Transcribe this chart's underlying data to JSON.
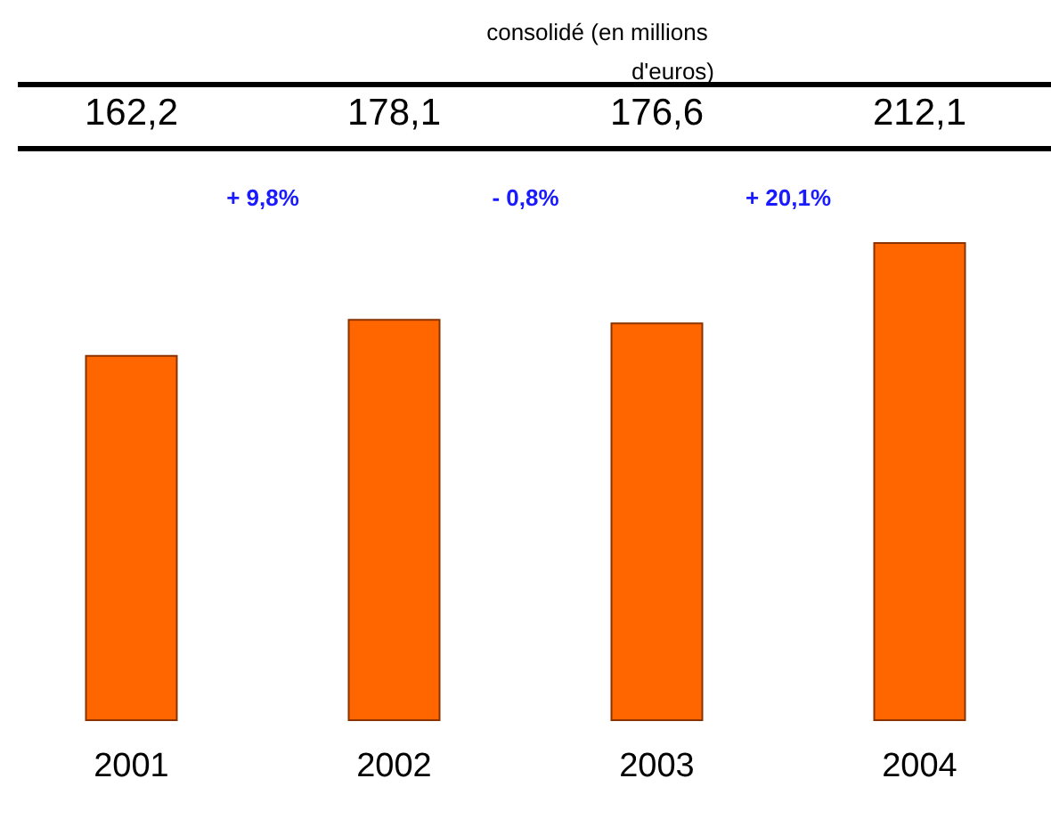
{
  "chart_data": {
    "type": "bar",
    "title": "consolidé (en millions d'euros)",
    "categories": [
      "2001",
      "2002",
      "2003",
      "2004"
    ],
    "values": [
      162.2,
      178.1,
      176.6,
      212.1
    ],
    "value_labels": [
      "162,2",
      "178,1",
      "176,6",
      "212,1"
    ],
    "color": "#ff6600",
    "annotations": [
      "+ 9,8%",
      "- 0,8%",
      "+ 20,1%"
    ]
  }
}
